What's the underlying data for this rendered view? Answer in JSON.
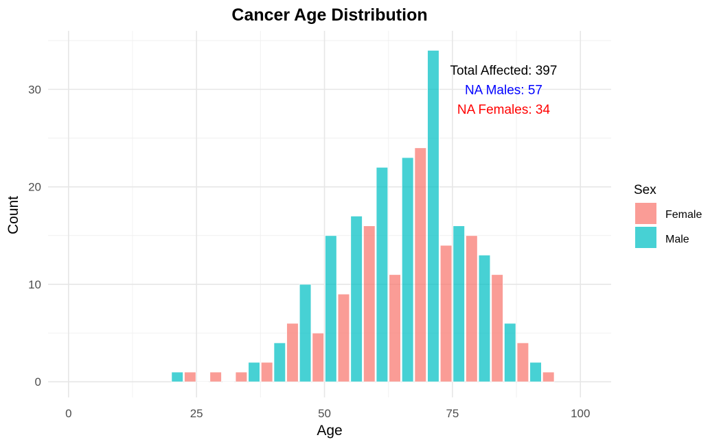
{
  "chart_data": {
    "type": "bar",
    "title": "Cancer Age Distribution",
    "xlabel": "Age",
    "ylabel": "Count",
    "xlim": [
      -4,
      106
    ],
    "ylim": [
      -1.6,
      36
    ],
    "x_ticks": [
      0,
      25,
      50,
      75,
      100
    ],
    "x_tick_labels": [
      "0",
      "25",
      "50",
      "75",
      "100"
    ],
    "y_ticks": [
      0,
      10,
      20,
      30
    ],
    "y_tick_labels": [
      "0",
      "10",
      "20",
      "30"
    ],
    "grid": true,
    "legend": {
      "title": "Sex",
      "position": "right",
      "entries": [
        {
          "label": "Female",
          "color": "#F8766D"
        },
        {
          "label": "Male",
          "color": "#00BFC4"
        }
      ]
    },
    "series": [
      {
        "name": "Female",
        "color": "#F8766D",
        "x": [
          23.75,
          28.75,
          33.75,
          38.75,
          43.75,
          48.75,
          53.75,
          58.75,
          63.75,
          68.75,
          73.75,
          78.75,
          83.75,
          88.75,
          93.75
        ],
        "values": [
          1,
          1,
          1,
          2,
          6,
          5,
          9,
          16,
          11,
          24,
          14,
          15,
          11,
          4,
          1
        ]
      },
      {
        "name": "Male",
        "color": "#00BFC4",
        "x": [
          21.25,
          26.25,
          31.25,
          36.25,
          41.25,
          46.25,
          51.25,
          56.25,
          61.25,
          66.25,
          71.25,
          76.25,
          81.25,
          86.25,
          91.25
        ],
        "values": [
          1,
          0,
          0,
          2,
          4,
          10,
          15,
          17,
          22,
          23,
          34,
          16,
          13,
          6,
          2
        ]
      }
    ],
    "annotations": [
      {
        "text": "Total Affected: 397",
        "x": 85,
        "y": 32,
        "color": "#000000"
      },
      {
        "text": "NA Males: 57",
        "x": 85,
        "y": 30,
        "color": "#0000FF"
      },
      {
        "text": "NA Females: 34",
        "x": 85,
        "y": 28,
        "color": "#FF0000"
      }
    ],
    "bar_width": 2.25
  }
}
